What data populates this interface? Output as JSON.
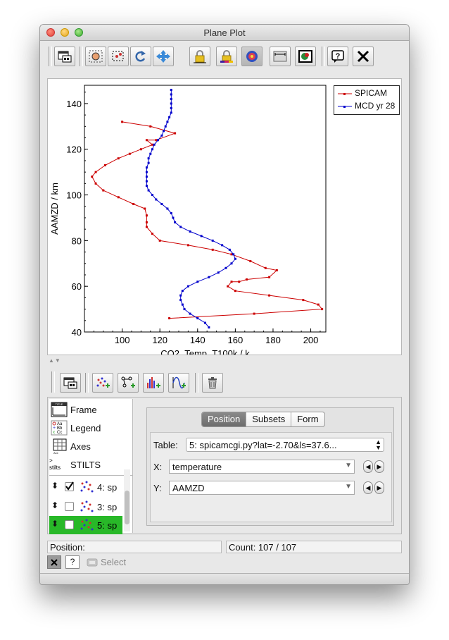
{
  "window": {
    "title": "Plane Plot"
  },
  "toolbar": {
    "buttons": [
      "new-window",
      "stilts-reflow",
      "zoom-region",
      "rotate",
      "pan",
      "lock-aspect",
      "color-lock",
      "density",
      "scale-bar",
      "export",
      "help",
      "close"
    ]
  },
  "chart_data": {
    "type": "line",
    "xlabel": "CO2_Temp_T100k / k",
    "ylabel": "AAMZD / km",
    "xlim": [
      80,
      208
    ],
    "ylim": [
      40,
      148
    ],
    "x_ticks": [
      100,
      120,
      140,
      160,
      180,
      200
    ],
    "y_ticks": [
      40,
      60,
      80,
      100,
      120,
      140
    ],
    "series": [
      {
        "name": "SPICAM",
        "color": "#cc0000",
        "points": [
          [
            100,
            132
          ],
          [
            115,
            130
          ],
          [
            128,
            127
          ],
          [
            118,
            124
          ],
          [
            113,
            124
          ],
          [
            116,
            122
          ],
          [
            110,
            120
          ],
          [
            104,
            118
          ],
          [
            98,
            116
          ],
          [
            91,
            113
          ],
          [
            86,
            110
          ],
          [
            84,
            108
          ],
          [
            86,
            105
          ],
          [
            90,
            102
          ],
          [
            98,
            99
          ],
          [
            106,
            96
          ],
          [
            112,
            94
          ],
          [
            113,
            91
          ],
          [
            113,
            88
          ],
          [
            113,
            86
          ],
          [
            116,
            83
          ],
          [
            120,
            80
          ],
          [
            135,
            78
          ],
          [
            148,
            76
          ],
          [
            158,
            74
          ],
          [
            168,
            71
          ],
          [
            176,
            68
          ],
          [
            182,
            67
          ],
          [
            178,
            64
          ],
          [
            166,
            63
          ],
          [
            162,
            62
          ],
          [
            158,
            62
          ],
          [
            156,
            60
          ],
          [
            160,
            58
          ],
          [
            178,
            56
          ],
          [
            196,
            54
          ],
          [
            204,
            52
          ],
          [
            206,
            50
          ],
          [
            170,
            48
          ],
          [
            125,
            46
          ]
        ]
      },
      {
        "name": "MCD yr 28",
        "color": "#0000cc",
        "points": [
          [
            126,
            146
          ],
          [
            126,
            144
          ],
          [
            126,
            142
          ],
          [
            126,
            140
          ],
          [
            126,
            138
          ],
          [
            126,
            136
          ],
          [
            125,
            134
          ],
          [
            124,
            132
          ],
          [
            123,
            130
          ],
          [
            122,
            128
          ],
          [
            121,
            126
          ],
          [
            119,
            124
          ],
          [
            117,
            122
          ],
          [
            116,
            120
          ],
          [
            115,
            118
          ],
          [
            114,
            116
          ],
          [
            114,
            114
          ],
          [
            113,
            112
          ],
          [
            113,
            110
          ],
          [
            113,
            108
          ],
          [
            113,
            106
          ],
          [
            113,
            104
          ],
          [
            114,
            102
          ],
          [
            116,
            100
          ],
          [
            118,
            98
          ],
          [
            121,
            96
          ],
          [
            124,
            94
          ],
          [
            126,
            92
          ],
          [
            127,
            90
          ],
          [
            128,
            88
          ],
          [
            131,
            86
          ],
          [
            136,
            84
          ],
          [
            142,
            82
          ],
          [
            148,
            80
          ],
          [
            153,
            78
          ],
          [
            157,
            76
          ],
          [
            159,
            74
          ],
          [
            160,
            72
          ],
          [
            158,
            70
          ],
          [
            155,
            68
          ],
          [
            151,
            66
          ],
          [
            146,
            64
          ],
          [
            140,
            62
          ],
          [
            135,
            60
          ],
          [
            132,
            58
          ],
          [
            131,
            56
          ],
          [
            131,
            54
          ],
          [
            132,
            52
          ],
          [
            133,
            50
          ],
          [
            136,
            48
          ],
          [
            140,
            46
          ],
          [
            144,
            44
          ],
          [
            146,
            42
          ]
        ]
      }
    ],
    "legend": "top-right"
  },
  "plot_toolbar": {
    "buttons": [
      "window-icon",
      "add-scatter",
      "add-pair",
      "add-histogram",
      "add-function",
      "delete-layer"
    ]
  },
  "controls": {
    "items": [
      {
        "label": "Frame"
      },
      {
        "label": "Legend"
      },
      {
        "label": "Axes"
      },
      {
        "label": "STILTS"
      }
    ],
    "layers": [
      {
        "label": "4: sp",
        "checked": true
      },
      {
        "label": "3: sp",
        "checked": false
      },
      {
        "label": "5: sp",
        "checked": false,
        "selected": true
      }
    ],
    "tabs": [
      "Position",
      "Subsets",
      "Form"
    ],
    "table_label": "Table:",
    "table_value": "5: spicamcgi.py?lat=-2.70&ls=37.6...",
    "x_label": "X:",
    "x_value": "temperature",
    "y_label": "Y:",
    "y_value": "AAMZD"
  },
  "status": {
    "position_label": "Position:",
    "count_label": "Count: 107 / 107"
  },
  "bottom": {
    "select_label": "Select",
    "help": "?"
  }
}
